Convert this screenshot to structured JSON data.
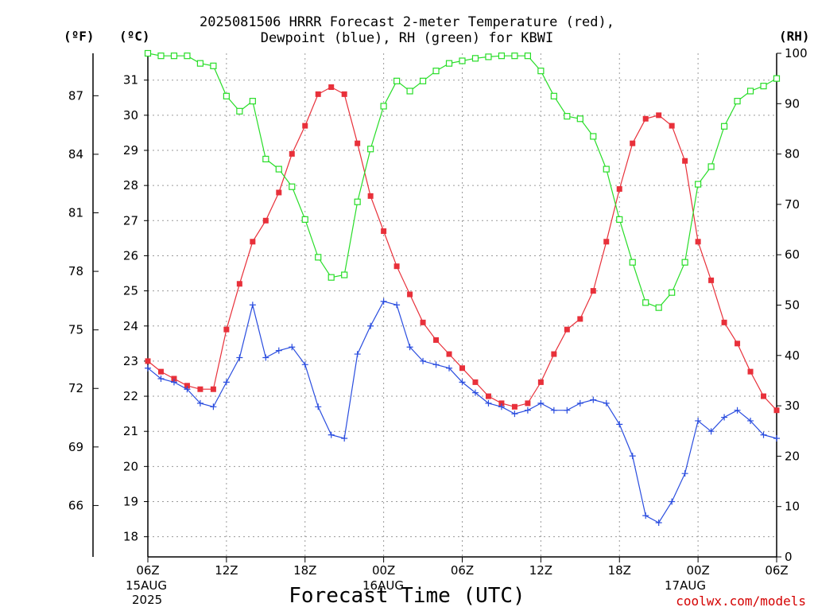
{
  "chart_title_line1": "2025081506 HRRR Forecast 2-meter Temperature (red),",
  "chart_title_line2": "Dewpoint (blue), RH (green) for KBWI",
  "units": {
    "f": "(ºF)",
    "c": "(ºC)",
    "rh": "(RH)"
  },
  "x_title": "Forecast Time (UTC)",
  "credit": "coolwx.com/models",
  "date_labels": [
    {
      "l2": "15AUG",
      "l3": "2025"
    },
    {
      "l2": "16AUG",
      "l3": ""
    },
    {
      "l2": "17AUG",
      "l3": ""
    }
  ],
  "chart_data": {
    "type": "line",
    "x_unit": "forecast hour from 2025-08-15 06Z",
    "x_tick_labels": [
      "06Z",
      "12Z",
      "18Z",
      "00Z",
      "06Z",
      "12Z",
      "18Z",
      "00Z",
      "06Z"
    ],
    "x_range": [
      0,
      48
    ],
    "ylim_c": [
      17.5,
      32.0
    ],
    "ylim_rh": [
      0,
      100
    ],
    "yticks_c": [
      18,
      19,
      20,
      21,
      22,
      23,
      24,
      25,
      26,
      27,
      28,
      29,
      30,
      31
    ],
    "yticks_f": [
      66,
      69,
      72,
      75,
      78,
      81,
      84,
      87
    ],
    "yticks_rh": [
      0,
      10,
      20,
      30,
      40,
      50,
      60,
      70,
      80,
      90,
      100
    ],
    "grid": true,
    "series": [
      {
        "name": "2-meter Temperature (red)",
        "axis": "C",
        "color": "#e8303a",
        "marker": "filled-square",
        "values": [
          23.0,
          22.7,
          22.5,
          22.3,
          22.2,
          22.2,
          23.9,
          25.2,
          26.4,
          27.0,
          27.8,
          28.9,
          29.7,
          30.6,
          30.8,
          30.6,
          29.2,
          27.7,
          26.7,
          25.7,
          24.9,
          24.1,
          23.6,
          23.2,
          22.8,
          22.4,
          22.0,
          21.8,
          21.7,
          21.8,
          22.4,
          23.2,
          23.9,
          24.2,
          25.0,
          26.4,
          27.9,
          29.2,
          29.9,
          30.0,
          29.7,
          28.7,
          26.4,
          25.3,
          24.1,
          23.5,
          22.7,
          22.0,
          21.6
        ]
      },
      {
        "name": "Dewpoint (blue)",
        "axis": "C",
        "color": "#2a4ddf",
        "marker": "plus",
        "values": [
          22.8,
          22.5,
          22.4,
          22.2,
          21.8,
          21.7,
          22.4,
          23.1,
          24.6,
          23.1,
          23.3,
          23.4,
          22.9,
          21.7,
          20.9,
          20.8,
          23.2,
          24.0,
          24.7,
          24.6,
          23.4,
          23.0,
          22.9,
          22.8,
          22.4,
          22.1,
          21.8,
          21.7,
          21.5,
          21.6,
          21.8,
          21.6,
          21.6,
          21.8,
          21.9,
          21.8,
          21.2,
          20.3,
          18.6,
          18.4,
          19.0,
          19.8,
          21.3,
          21.0,
          21.4,
          21.6,
          21.3,
          20.9,
          20.8
        ]
      },
      {
        "name": "RH (green)",
        "axis": "RH",
        "color": "#28dd28",
        "marker": "open-square",
        "values": [
          100,
          99.5,
          99.5,
          99.5,
          98,
          97.5,
          91.5,
          88.5,
          90.5,
          79,
          77,
          73.5,
          67,
          59.5,
          55.5,
          56,
          70.5,
          81,
          89.5,
          94.5,
          92.5,
          94.5,
          96.5,
          98,
          98.5,
          99,
          99.3,
          99.5,
          99.5,
          99.5,
          96.5,
          91.5,
          87.5,
          87,
          83.5,
          77,
          67,
          58.5,
          50.5,
          49.5,
          52.5,
          58.5,
          74,
          77.5,
          85.5,
          90.5,
          92.5,
          93.5,
          95
        ]
      }
    ]
  }
}
